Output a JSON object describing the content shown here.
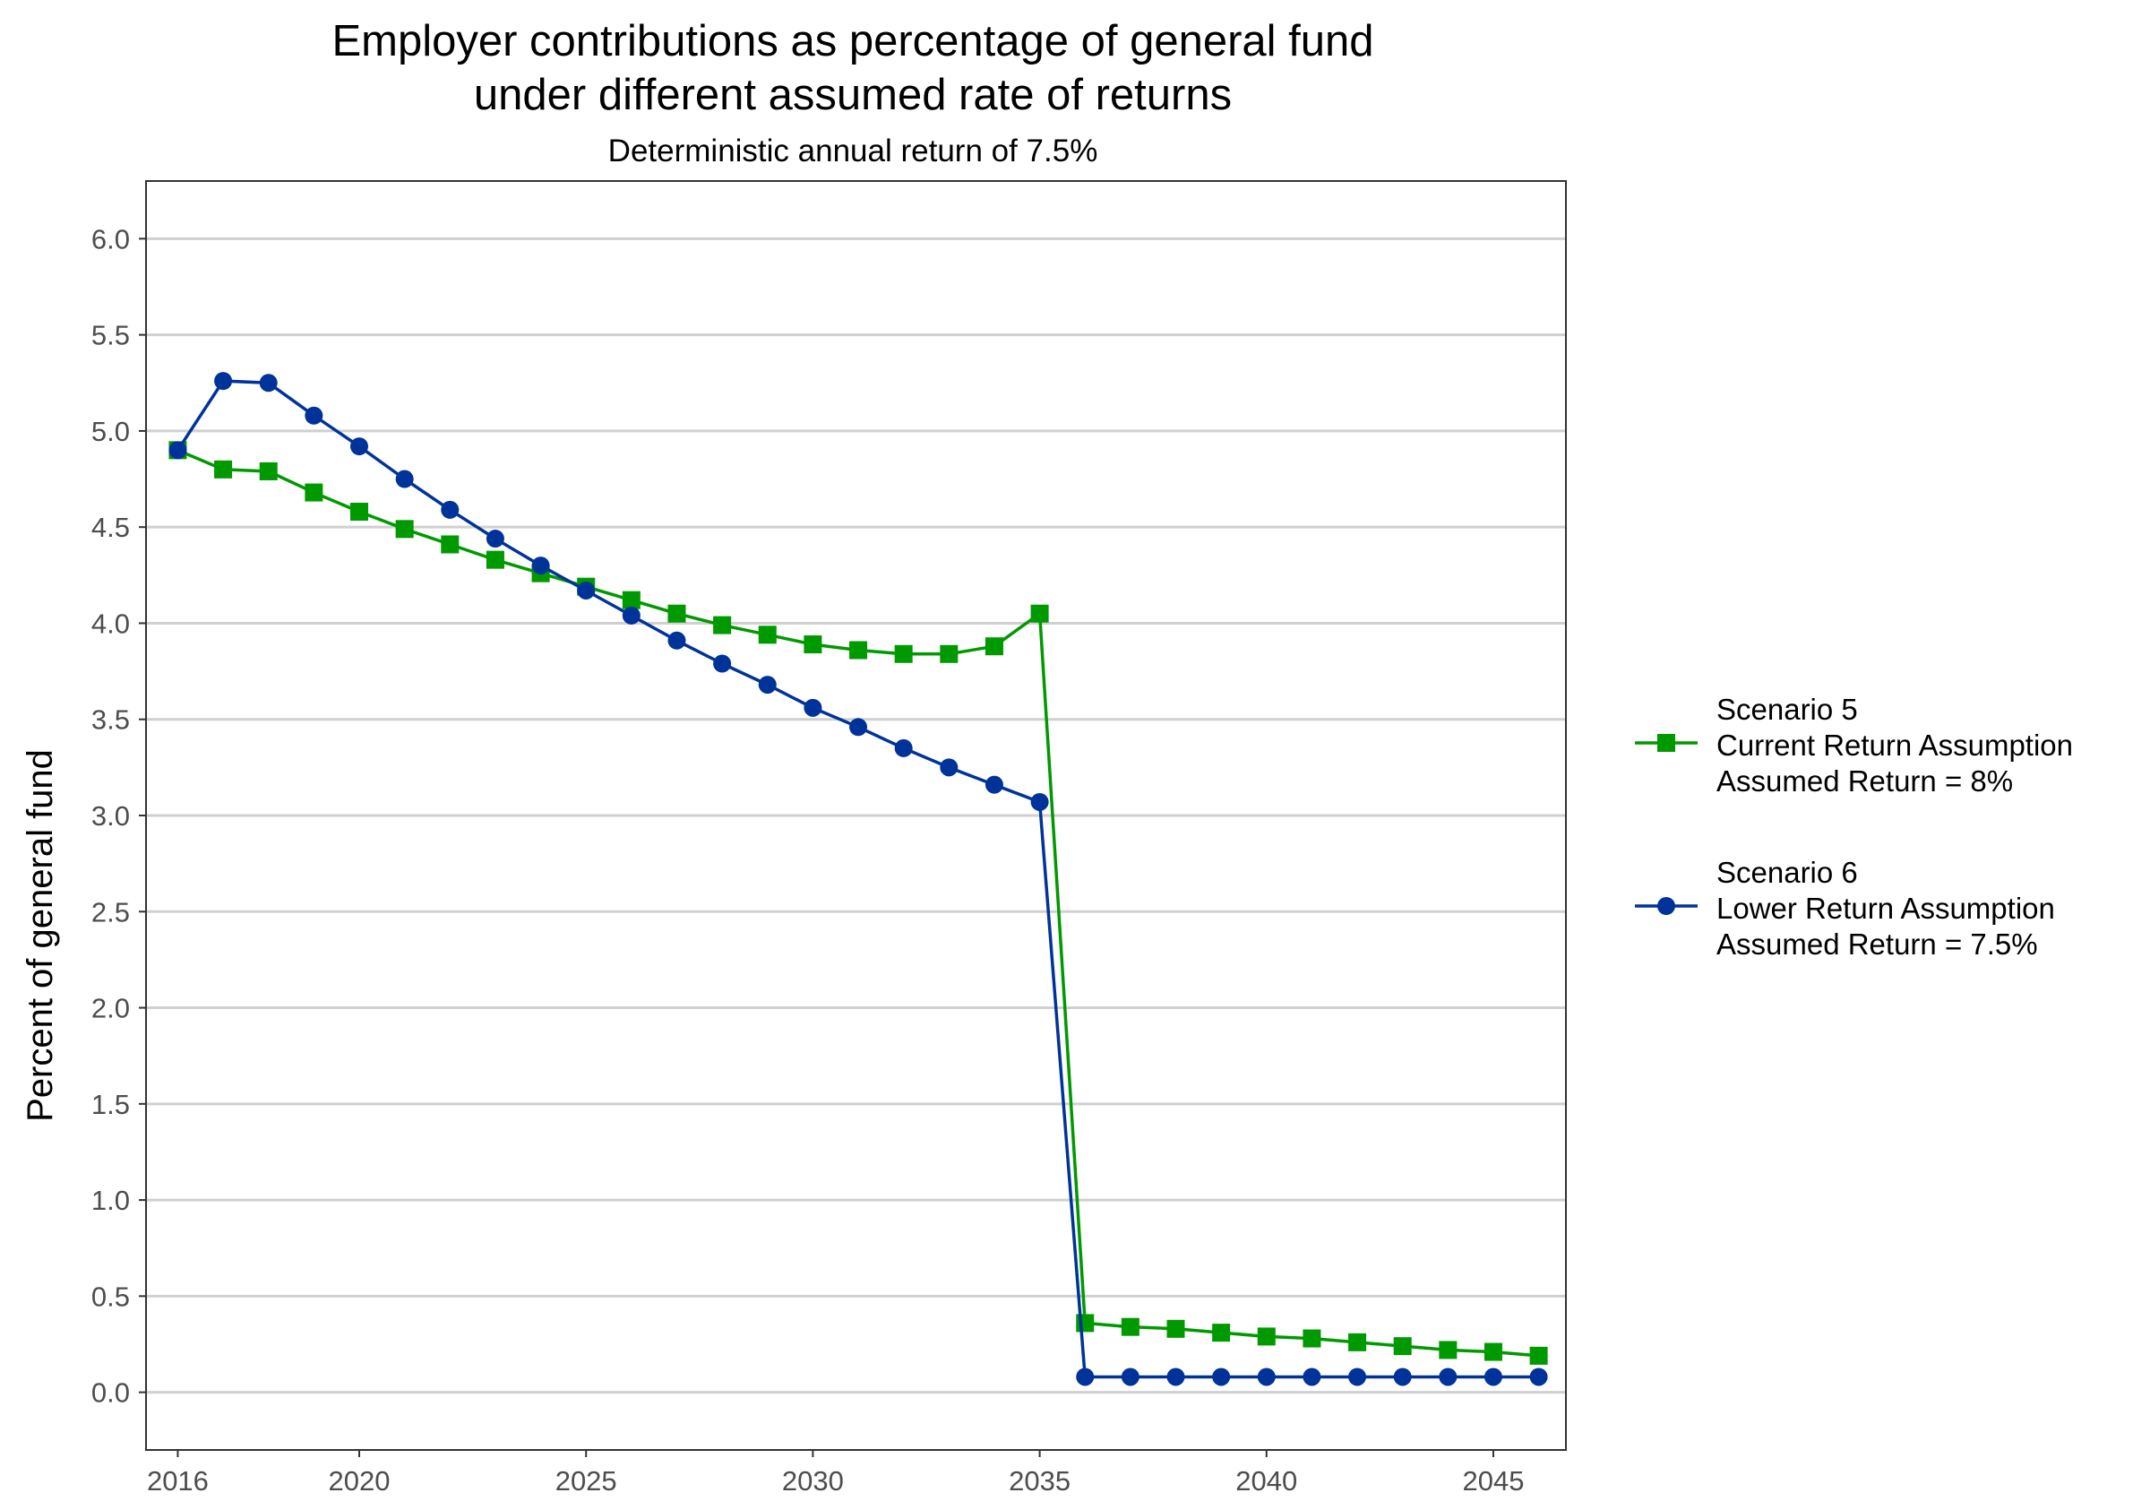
{
  "chart_data": {
    "type": "line",
    "title_line1": "Employer contributions as percentage of general fund",
    "title_line2": "under different assumed rate of returns",
    "subtitle": "Deterministic annual return of 7.5%",
    "xlabel": "",
    "ylabel": "Percent of general fund",
    "xlim": [
      2015.3,
      2046.6
    ],
    "ylim": [
      -0.3,
      6.3
    ],
    "x_ticks": [
      2016,
      2020,
      2025,
      2030,
      2035,
      2040,
      2045
    ],
    "x_tick_labels": [
      "2016",
      "2020",
      "2025",
      "2030",
      "2035",
      "2040",
      "2045"
    ],
    "y_ticks": [
      0.0,
      0.5,
      1.0,
      1.5,
      2.0,
      2.5,
      3.0,
      3.5,
      4.0,
      4.5,
      5.0,
      5.5,
      6.0
    ],
    "y_tick_labels": [
      "0.0",
      "0.5",
      "1.0",
      "1.5",
      "2.0",
      "2.5",
      "3.0",
      "3.5",
      "4.0",
      "4.5",
      "5.0",
      "5.5",
      "6.0"
    ],
    "grid": "horizontal major",
    "legend_position": "right",
    "x": [
      2016,
      2017,
      2018,
      2019,
      2020,
      2021,
      2022,
      2023,
      2024,
      2025,
      2026,
      2027,
      2028,
      2029,
      2030,
      2031,
      2032,
      2033,
      2034,
      2035,
      2036,
      2037,
      2038,
      2039,
      2040,
      2041,
      2042,
      2043,
      2044,
      2045,
      2046
    ],
    "series": [
      {
        "name_line1": "Scenario 5",
        "name_line2": "Current Return Assumption",
        "name_line3": "Assumed Return = 8%",
        "color": "#009900",
        "marker": "square",
        "values": [
          4.9,
          4.8,
          4.79,
          4.68,
          4.58,
          4.49,
          4.41,
          4.33,
          4.26,
          4.19,
          4.12,
          4.05,
          3.99,
          3.94,
          3.89,
          3.86,
          3.84,
          3.84,
          3.88,
          4.05,
          0.36,
          0.34,
          0.33,
          0.31,
          0.29,
          0.28,
          0.26,
          0.24,
          0.22,
          0.21,
          0.19
        ]
      },
      {
        "name_line1": "Scenario 6",
        "name_line2": "Lower Return Assumption",
        "name_line3": "Assumed Return = 7.5%",
        "color": "#003399",
        "marker": "circle",
        "values": [
          4.9,
          5.26,
          5.25,
          5.08,
          4.92,
          4.75,
          4.59,
          4.44,
          4.3,
          4.17,
          4.04,
          3.91,
          3.79,
          3.68,
          3.56,
          3.46,
          3.35,
          3.25,
          3.16,
          3.07,
          0.08,
          0.08,
          0.08,
          0.08,
          0.08,
          0.08,
          0.08,
          0.08,
          0.08,
          0.08,
          0.08
        ]
      }
    ]
  }
}
